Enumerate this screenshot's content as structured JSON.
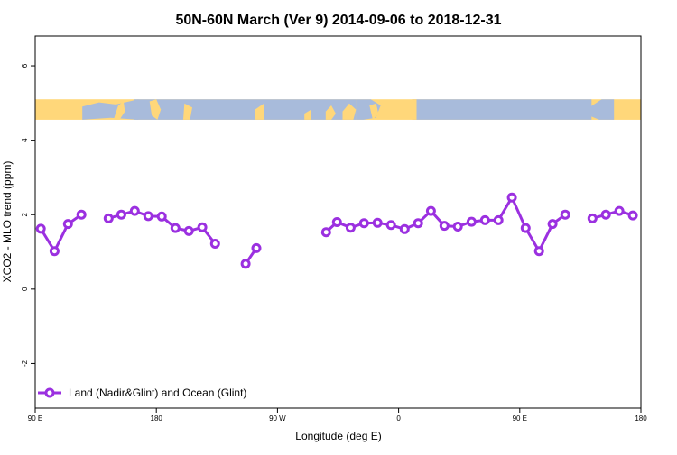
{
  "chart_data": {
    "type": "line",
    "title": "50N-60N March (Ver 9)   2014-09-06 to 2018-12-31",
    "xlabel": "Longitude (deg E)",
    "ylabel": "XCO2 - MLO trend (ppm)",
    "xlim": [
      -90,
      180
    ],
    "ylim": [
      -3.2,
      6.8
    ],
    "x_ticks": [
      {
        "value": -90,
        "label": "90 E"
      },
      {
        "value": -36,
        "label": "180"
      },
      {
        "value": 18,
        "label": "90 W"
      },
      {
        "value": 72,
        "label": "0"
      },
      {
        "value": 126,
        "label": "90 E"
      },
      {
        "value": 180,
        "label": "180"
      }
    ],
    "y_ticks": [
      {
        "value": -2,
        "label": "-2"
      },
      {
        "value": 0,
        "label": "0"
      },
      {
        "value": 2,
        "label": "2"
      },
      {
        "value": 4,
        "label": "4"
      },
      {
        "value": 6,
        "label": "6"
      }
    ],
    "map_band": {
      "ymin": 4.55,
      "ymax": 5.1,
      "land_color": "#FFD77A",
      "ocean_color": "#A8BBDB"
    },
    "series": [
      {
        "name": "Land (Nadir&Glint) and Ocean (Glint)",
        "color": "#9B30E0",
        "segments": [
          [
            [
              -87.5,
              1.62
            ],
            [
              -81.4,
              1.02
            ],
            [
              -75.4,
              1.75
            ],
            [
              -69.4,
              2.0
            ]
          ],
          [
            [
              -57.3,
              1.9
            ],
            [
              -51.6,
              2.0
            ],
            [
              -45.6,
              2.1
            ],
            [
              -39.6,
              1.96
            ],
            [
              -33.6,
              1.95
            ],
            [
              -27.5,
              1.64
            ],
            [
              -21.5,
              1.56
            ],
            [
              -15.5,
              1.66
            ],
            [
              -9.8,
              1.22
            ]
          ],
          [
            [
              3.8,
              0.68
            ],
            [
              8.6,
              1.1
            ]
          ],
          [
            [
              39.7,
              1.53
            ],
            [
              44.5,
              1.8
            ],
            [
              50.6,
              1.65
            ],
            [
              56.6,
              1.77
            ],
            [
              62.6,
              1.78
            ],
            [
              68.6,
              1.72
            ],
            [
              74.7,
              1.61
            ],
            [
              80.7,
              1.77
            ],
            [
              86.4,
              2.1
            ],
            [
              92.4,
              1.7
            ],
            [
              98.4,
              1.68
            ],
            [
              104.5,
              1.81
            ],
            [
              110.5,
              1.85
            ],
            [
              116.5,
              1.85
            ],
            [
              122.5,
              2.46
            ],
            [
              128.6,
              1.64
            ],
            [
              134.6,
              1.02
            ],
            [
              140.6,
              1.75
            ],
            [
              146.3,
              2.0
            ]
          ],
          [
            [
              158.4,
              1.9
            ],
            [
              164.4,
              2.0
            ],
            [
              170.4,
              2.1
            ],
            [
              176.4,
              1.98
            ]
          ]
        ]
      }
    ],
    "legend": {
      "position": "bottom-left"
    },
    "grid": false
  }
}
